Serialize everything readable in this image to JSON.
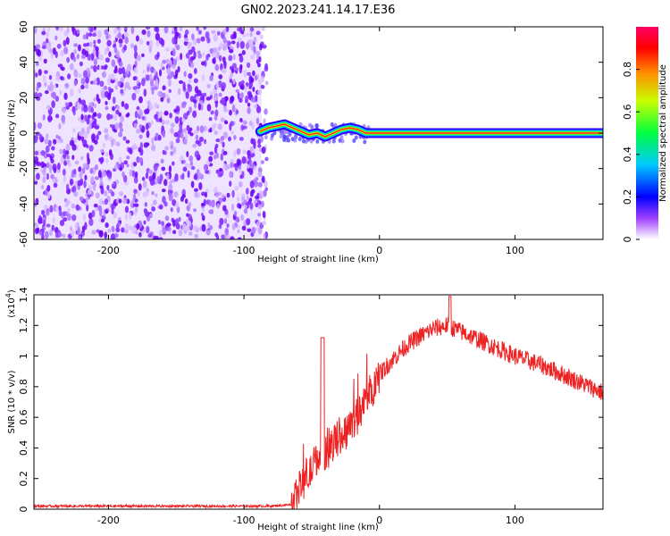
{
  "figure_title": "GN02.2023.241.14.17.E36",
  "chart_data": [
    {
      "type": "heatmap",
      "xlabel": "Height of straight line (km)",
      "ylabel": "Frequency (Hz)",
      "xlim": [
        -255,
        165
      ],
      "ylim": [
        -60,
        60
      ],
      "x_ticks": [
        -200,
        -100,
        0,
        100
      ],
      "y_ticks": [
        -60,
        -40,
        -20,
        0,
        20,
        40,
        60
      ],
      "noise_region_x": [
        -255,
        -87
      ],
      "signal_track": {
        "x": [
          -88,
          -82,
          -76,
          -70,
          -64,
          -58,
          -52,
          -46,
          -40,
          -34,
          -28,
          -22,
          -16,
          -10,
          0,
          50,
          100,
          130,
          165
        ],
        "freq_hz": [
          1,
          3,
          4,
          5,
          3,
          1,
          -1,
          0,
          -2,
          0,
          2,
          3,
          2,
          0,
          0,
          0,
          0,
          0,
          0
        ]
      },
      "colorbar": {
        "label": "Normalized spectral amplitude",
        "range": [
          0,
          1
        ],
        "ticks": [
          0.0,
          0.2,
          0.4,
          0.6,
          0.8
        ],
        "colors": [
          "#ffffff",
          "#7a00ff",
          "#0000ff",
          "#00c8ff",
          "#00ff00",
          "#ffff00",
          "#ff8000",
          "#ff0000",
          "#ff0066"
        ]
      }
    },
    {
      "type": "line",
      "xlabel": "Height of straight line (km)",
      "ylabel": "SNR (10 * v/v)",
      "y_multiplier_label": "(x10",
      "y_multiplier_exp": "4",
      "y_multiplier_close": ")",
      "xlim": [
        -255,
        165
      ],
      "ylim": [
        0,
        1.4
      ],
      "x_ticks": [
        -200,
        -100,
        0,
        100
      ],
      "y_ticks": [
        0.0,
        0.2,
        0.4,
        0.6,
        0.8,
        1.0,
        1.2,
        1.4
      ],
      "line_color": "#ee2222",
      "series": [
        {
          "x": [
            -255,
            -200,
            -150,
            -100,
            -80,
            -65,
            -60,
            -55,
            -50,
            -45,
            -40,
            -35,
            -30,
            -25,
            -20,
            -15,
            -10,
            -5,
            0,
            10,
            20,
            30,
            40,
            50,
            60,
            70,
            80,
            90,
            100,
            110,
            120,
            130,
            140,
            150,
            160,
            165
          ],
          "values": [
            0.02,
            0.02,
            0.02,
            0.02,
            0.02,
            0.03,
            0.12,
            0.2,
            0.25,
            0.35,
            0.38,
            0.43,
            0.47,
            0.52,
            0.58,
            0.62,
            0.72,
            0.8,
            0.88,
            0.98,
            1.07,
            1.13,
            1.18,
            1.2,
            1.16,
            1.12,
            1.08,
            1.04,
            1.0,
            0.97,
            0.94,
            0.9,
            0.86,
            0.82,
            0.78,
            0.76
          ]
        }
      ]
    }
  ]
}
